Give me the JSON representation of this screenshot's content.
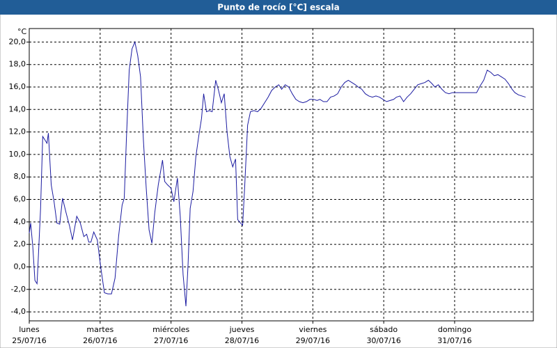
{
  "chart_data": {
    "type": "line",
    "title": "Punto de rocío [°C] escala",
    "y_unit": "°C",
    "xlim": [
      0,
      7.11
    ],
    "ylim": [
      -4.8,
      21.2
    ],
    "grid": true,
    "xticks": [
      {
        "value": 0,
        "label": "lunes"
      },
      {
        "value": 1,
        "label": "martes"
      },
      {
        "value": 2,
        "label": "miércoles"
      },
      {
        "value": 3,
        "label": "jueves"
      },
      {
        "value": 4,
        "label": "viernes"
      },
      {
        "value": 5,
        "label": "sábado"
      },
      {
        "value": 6,
        "label": "domingo"
      }
    ],
    "xtick_sublabels": [
      "25/07/16",
      "26/07/16",
      "27/07/16",
      "28/07/16",
      "29/07/16",
      "30/07/16",
      "31/07/16"
    ],
    "yticks": [
      {
        "value": -4,
        "label": "-4,0"
      },
      {
        "value": -2,
        "label": "-2,0"
      },
      {
        "value": 0,
        "label": "0,0"
      },
      {
        "value": 2,
        "label": "2,0"
      },
      {
        "value": 4,
        "label": "4,0"
      },
      {
        "value": 6,
        "label": "6,0"
      },
      {
        "value": 8,
        "label": "8,0"
      },
      {
        "value": 10,
        "label": "10,0"
      },
      {
        "value": 12,
        "label": "12,0"
      },
      {
        "value": 14,
        "label": "14,0"
      },
      {
        "value": 16,
        "label": "16,0"
      },
      {
        "value": 18,
        "label": "18,0"
      },
      {
        "value": 20,
        "label": "20,0"
      }
    ],
    "series": [
      {
        "color": "#1a1aa0",
        "x": [
          0,
          0.02,
          0.05,
          0.08,
          0.11,
          0.13,
          0.16,
          0.19,
          0.22,
          0.25,
          0.27,
          0.31,
          0.35,
          0.39,
          0.43,
          0.47,
          0.52,
          0.57,
          0.61,
          0.67,
          0.72,
          0.77,
          0.81,
          0.84,
          0.87,
          0.91,
          0.96,
          1.01,
          1.06,
          1.11,
          1.16,
          1.21,
          1.26,
          1.31,
          1.34,
          1.37,
          1.41,
          1.45,
          1.49,
          1.53,
          1.57,
          1.61,
          1.65,
          1.69,
          1.73,
          1.77,
          1.82,
          1.88,
          1.91,
          1.95,
          2.0,
          2.04,
          2.09,
          2.13,
          2.17,
          2.21,
          2.24,
          2.27,
          2.31,
          2.35,
          2.39,
          2.43,
          2.46,
          2.5,
          2.54,
          2.58,
          2.63,
          2.67,
          2.71,
          2.75,
          2.79,
          2.83,
          2.87,
          2.91,
          2.94,
          2.98,
          3.01,
          3.04,
          3.08,
          3.12,
          3.17,
          3.22,
          3.27,
          3.32,
          3.37,
          3.42,
          3.47,
          3.52,
          3.56,
          3.61,
          3.66,
          3.71,
          3.76,
          3.81,
          3.86,
          3.91,
          3.96,
          4.01,
          4.06,
          4.1,
          4.15,
          4.2,
          4.25,
          4.3,
          4.35,
          4.4,
          4.45,
          4.5,
          4.55,
          4.6,
          4.64,
          4.69,
          4.74,
          4.79,
          4.84,
          4.89,
          4.94,
          4.99,
          5.04,
          5.09,
          5.14,
          5.18,
          5.23,
          5.28,
          5.33,
          5.38,
          5.43,
          5.48,
          5.53,
          5.58,
          5.63,
          5.68,
          5.72,
          5.77,
          5.82,
          5.87,
          5.92,
          5.97,
          6.02,
          6.07,
          6.12,
          6.17,
          6.22,
          6.27,
          6.31,
          6.36,
          6.41,
          6.46,
          6.51,
          6.56,
          6.61,
          6.66,
          6.71,
          6.76,
          6.81,
          6.85,
          6.9,
          6.95,
          7.0
        ],
        "values": [
          3.0,
          3.9,
          1.8,
          -1.2,
          -1.5,
          1.1,
          5.2,
          11.6,
          11.3,
          11.0,
          11.9,
          7.3,
          5.8,
          3.9,
          3.8,
          6.1,
          4.8,
          3.6,
          2.4,
          4.5,
          3.9,
          2.7,
          2.9,
          2.2,
          2.2,
          3.1,
          2.4,
          -0.1,
          -2.3,
          -2.4,
          -2.4,
          -1.0,
          2.7,
          5.5,
          6.1,
          11.3,
          17.5,
          19.4,
          20.0,
          18.8,
          16.9,
          11.3,
          7.0,
          3.3,
          2.1,
          4.8,
          7.3,
          9.5,
          7.6,
          7.3,
          7.0,
          5.8,
          7.9,
          4.5,
          -0.7,
          -3.5,
          0.2,
          5.2,
          6.7,
          9.8,
          11.6,
          13.2,
          15.4,
          13.8,
          13.9,
          13.8,
          16.6,
          15.7,
          14.6,
          15.4,
          12.0,
          9.8,
          8.9,
          9.6,
          4.2,
          3.9,
          3.7,
          7.3,
          12.6,
          13.8,
          13.9,
          13.8,
          14.1,
          14.6,
          15.1,
          15.7,
          16.0,
          16.2,
          15.8,
          16.2,
          16.0,
          15.4,
          14.9,
          14.7,
          14.6,
          14.7,
          14.9,
          14.9,
          14.8,
          14.9,
          14.7,
          14.7,
          15.1,
          15.2,
          15.4,
          16.0,
          16.4,
          16.6,
          16.4,
          16.2,
          16.0,
          15.8,
          15.4,
          15.2,
          15.1,
          15.2,
          15.1,
          14.9,
          14.7,
          14.8,
          14.9,
          15.1,
          15.2,
          14.7,
          15.1,
          15.4,
          15.8,
          16.2,
          16.3,
          16.4,
          16.6,
          16.3,
          16.0,
          16.2,
          15.8,
          15.5,
          15.4,
          15.5,
          15.5,
          15.5,
          15.5,
          15.5,
          15.5,
          15.5,
          15.5,
          16.1,
          16.6,
          17.5,
          17.3,
          17.0,
          17.1,
          16.9,
          16.7,
          16.3,
          15.8,
          15.5,
          15.3,
          15.2,
          15.1
        ]
      }
    ]
  }
}
